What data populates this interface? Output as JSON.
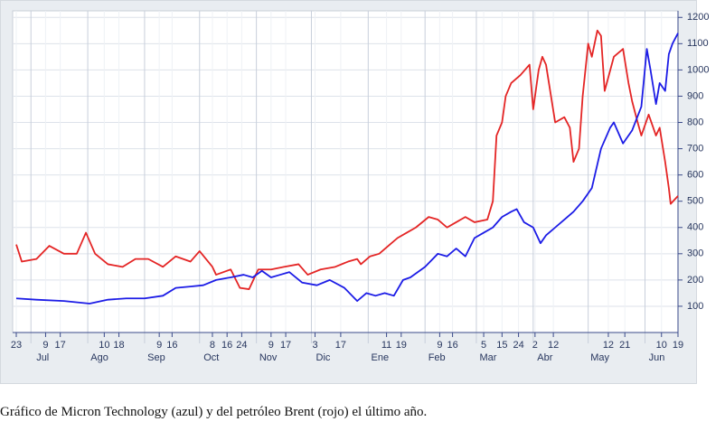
{
  "chart_data": {
    "type": "line",
    "caption": "Gráfico de Micron Technology (azul) y del petróleo Brent (rojo) el último año.",
    "series": [
      {
        "color": "#e42525",
        "x": [
          0,
          3,
          11,
          18,
          26,
          33,
          38,
          43,
          50,
          58,
          65,
          72,
          80,
          87,
          95,
          100,
          107,
          109,
          117,
          122,
          127,
          132,
          139,
          146,
          154,
          159,
          166,
          174,
          181,
          186,
          188,
          193,
          198,
          203,
          208,
          213,
          218,
          225,
          230,
          235,
          240,
          245,
          250,
          257,
          260,
          262,
          265,
          267,
          270,
          275,
          280,
          282,
          285,
          287,
          289,
          294,
          299,
          302,
          304,
          307,
          309,
          312,
          314,
          317,
          319,
          321,
          326,
          331,
          334,
          336,
          339,
          341,
          345,
          349,
          351,
          354,
          356,
          357,
          361
        ],
        "values": [
          335,
          270,
          280,
          330,
          300,
          300,
          380,
          300,
          260,
          250,
          280,
          280,
          250,
          290,
          270,
          310,
          250,
          220,
          240,
          170,
          165,
          240,
          240,
          250,
          260,
          220,
          240,
          250,
          270,
          280,
          260,
          290,
          300,
          330,
          360,
          380,
          400,
          440,
          430,
          400,
          420,
          440,
          420,
          430,
          500,
          750,
          800,
          900,
          950,
          980,
          1020,
          850,
          1000,
          1050,
          1020,
          800,
          820,
          780,
          650,
          700,
          900,
          1100,
          1050,
          1150,
          1130,
          920,
          1050,
          1080,
          950,
          880,
          800,
          750,
          830,
          750,
          780,
          650,
          550,
          490,
          520
        ]
      },
      {
        "color": "#1c1ce6",
        "x": [
          0,
          11,
          26,
          40,
          50,
          60,
          70,
          80,
          87,
          95,
          102,
          109,
          117,
          124,
          129,
          134,
          139,
          144,
          149,
          156,
          164,
          171,
          179,
          186,
          191,
          196,
          201,
          206,
          211,
          215,
          223,
          230,
          235,
          240,
          245,
          250,
          255,
          260,
          265,
          270,
          273,
          277,
          282,
          286,
          289,
          294,
          299,
          304,
          309,
          314,
          319,
          324,
          326,
          331,
          336,
          341,
          344,
          346,
          349,
          351,
          354,
          356,
          358,
          361
        ],
        "values": [
          130,
          125,
          120,
          110,
          125,
          130,
          130,
          140,
          170,
          175,
          180,
          200,
          210,
          220,
          210,
          235,
          210,
          220,
          230,
          190,
          180,
          200,
          170,
          120,
          150,
          140,
          150,
          140,
          200,
          210,
          250,
          300,
          290,
          320,
          290,
          360,
          380,
          400,
          440,
          460,
          470,
          420,
          400,
          340,
          370,
          400,
          430,
          460,
          500,
          550,
          700,
          780,
          800,
          720,
          770,
          860,
          1080,
          1000,
          870,
          950,
          920,
          1060,
          1100,
          1140
        ]
      }
    ],
    "xlim": [
      0,
      361
    ],
    "xticks": [
      {
        "value": 0,
        "label": "23"
      },
      {
        "value": 16,
        "label": "9"
      },
      {
        "value": 24,
        "label": "17"
      },
      {
        "value": 48,
        "label": "10"
      },
      {
        "value": 56,
        "label": "18"
      },
      {
        "value": 78,
        "label": "9"
      },
      {
        "value": 85,
        "label": "16"
      },
      {
        "value": 107,
        "label": "8"
      },
      {
        "value": 115,
        "label": "16"
      },
      {
        "value": 123,
        "label": "24"
      },
      {
        "value": 139,
        "label": "9"
      },
      {
        "value": 147,
        "label": "17"
      },
      {
        "value": 163,
        "label": "3"
      },
      {
        "value": 177,
        "label": "17"
      },
      {
        "value": 202,
        "label": "11"
      },
      {
        "value": 210,
        "label": "19"
      },
      {
        "value": 231,
        "label": "9"
      },
      {
        "value": 238,
        "label": "16"
      },
      {
        "value": 255,
        "label": "5"
      },
      {
        "value": 265,
        "label": "15"
      },
      {
        "value": 274,
        "label": "24"
      },
      {
        "value": 283,
        "label": "2"
      },
      {
        "value": 293,
        "label": "12"
      },
      {
        "value": 323,
        "label": "12"
      },
      {
        "value": 332,
        "label": "21"
      },
      {
        "value": 352,
        "label": "10"
      },
      {
        "value": 361,
        "label": "19"
      }
    ],
    "month_ticks": [
      {
        "value": 8,
        "label": "Jul"
      },
      {
        "value": 39,
        "label": "Ago"
      },
      {
        "value": 70,
        "label": "Sep"
      },
      {
        "value": 100,
        "label": "Oct"
      },
      {
        "value": 131,
        "label": "Nov"
      },
      {
        "value": 161,
        "label": "Dic"
      },
      {
        "value": 192,
        "label": "Ene"
      },
      {
        "value": 223,
        "label": "Feb"
      },
      {
        "value": 251,
        "label": "Mar"
      },
      {
        "value": 282,
        "label": "Abr"
      },
      {
        "value": 312,
        "label": "May"
      },
      {
        "value": 343,
        "label": "Jun"
      }
    ],
    "ylim": [
      0,
      1225
    ],
    "yticks": [
      100,
      200,
      300,
      400,
      500,
      600,
      700,
      800,
      900,
      1000,
      1100,
      1200
    ],
    "grid": true
  }
}
